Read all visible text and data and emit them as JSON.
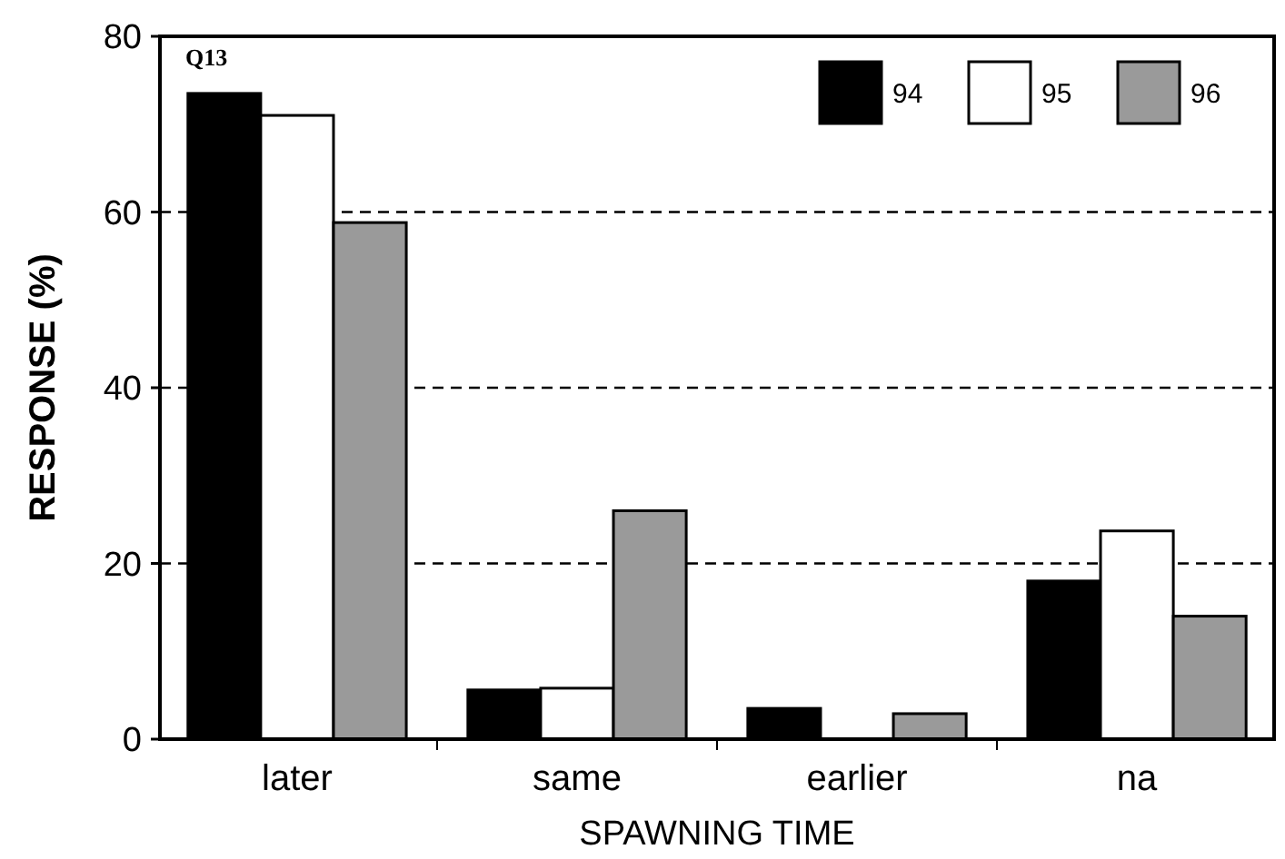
{
  "chart_data": {
    "type": "bar",
    "xlabel": "SPAWNING TIME",
    "ylabel": "RESPONSE (%)",
    "annotations": [
      "Q13"
    ],
    "categories": [
      "later",
      "same",
      "earlier",
      "na"
    ],
    "series": [
      {
        "name": "94",
        "color": "#000000",
        "values": [
          73.5,
          5.6,
          3.5,
          18
        ]
      },
      {
        "name": "95",
        "color": "#ffffff",
        "values": [
          71,
          5.8,
          0,
          23.7
        ]
      },
      {
        "name": "96",
        "color": "#9a9a9a",
        "values": [
          58.8,
          26,
          2.9,
          14
        ]
      }
    ],
    "ylim": [
      0,
      80
    ],
    "yticks": [
      0,
      20,
      40,
      60,
      80
    ],
    "grid": "y",
    "legend": "top right"
  }
}
